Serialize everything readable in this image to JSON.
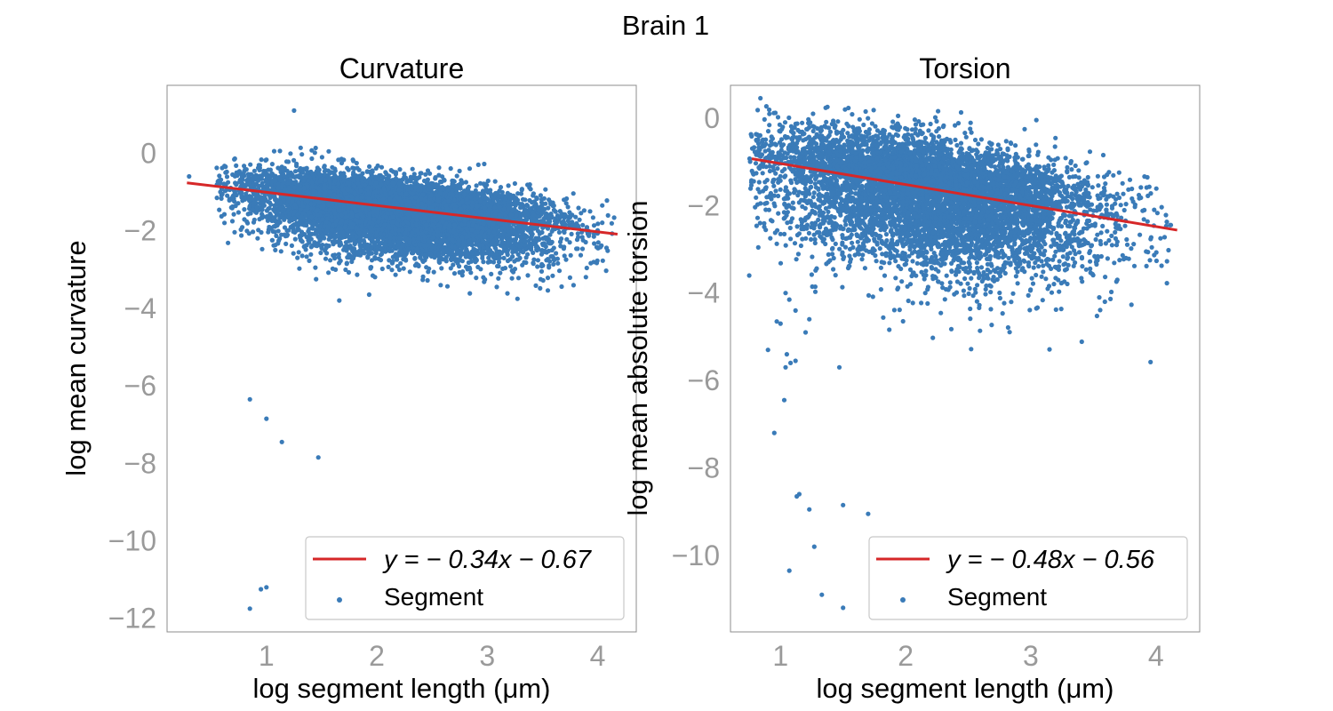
{
  "figure": {
    "suptitle": "Brain 1"
  },
  "colors": {
    "scatter": "#3a7bb8",
    "fit": "#d62728",
    "tick": "#9a9a9a"
  },
  "chart_data": [
    {
      "type": "scatter",
      "title": "Curvature",
      "xlabel": "log segment length (μm)",
      "ylabel": "log mean curvature",
      "xlim": [
        0.1,
        4.35
      ],
      "ylim": [
        -12.35,
        1.75
      ],
      "xticks": [
        1,
        2,
        3,
        4
      ],
      "yticks": [
        0,
        -2,
        -4,
        -6,
        -8,
        -10,
        -12
      ],
      "xtick_labels": [
        "1",
        "2",
        "3",
        "4"
      ],
      "ytick_labels": [
        "0",
        "−2",
        "−4",
        "−6",
        "−8",
        "−10",
        "−12"
      ],
      "legend_position": "lower-right",
      "fit": {
        "slope": -0.34,
        "intercept": -0.67,
        "x_range": [
          0.28,
          4.18
        ],
        "label": "y = − 0.34x − 0.67"
      },
      "series": [
        {
          "name": "Segment",
          "cloud": {
            "x_range": [
              0.55,
              4.15
            ],
            "y_spread_low": 1.05,
            "y_spread_high": 0.65,
            "approx_count": 9000
          },
          "outliers": [
            [
              1.25,
              1.1
            ],
            [
              1.07,
              0.05
            ],
            [
              1.68,
              -0.15
            ],
            [
              2.92,
              -0.3
            ],
            [
              0.3,
              -0.6
            ],
            [
              0.55,
              -0.38
            ],
            [
              0.85,
              -6.35
            ],
            [
              1.0,
              -6.85
            ],
            [
              1.14,
              -7.45
            ],
            [
              1.47,
              -7.85
            ],
            [
              0.95,
              -11.25
            ],
            [
              1.0,
              -11.2
            ],
            [
              0.85,
              -11.75
            ],
            [
              1.66,
              -3.8
            ],
            [
              1.93,
              -3.65
            ],
            [
              1.45,
              -3.25
            ],
            [
              1.6,
              -2.98
            ],
            [
              2.25,
              -2.65
            ]
          ]
        }
      ]
    },
    {
      "type": "scatter",
      "title": "Torsion",
      "xlabel": "log segment length (μm)",
      "ylabel": "log mean absolute torsion",
      "xlim": [
        0.6,
        4.35
      ],
      "ylim": [
        -11.75,
        0.75
      ],
      "xticks": [
        1,
        2,
        3,
        4
      ],
      "yticks": [
        0,
        -2,
        -4,
        -6,
        -8,
        -10
      ],
      "xtick_labels": [
        "1",
        "2",
        "3",
        "4"
      ],
      "ytick_labels": [
        "0",
        "−2",
        "−4",
        "−6",
        "−8",
        "−10"
      ],
      "legend_position": "lower-right",
      "fit": {
        "slope": -0.48,
        "intercept": -0.56,
        "x_range": [
          0.77,
          4.17
        ],
        "label": "y = − 0.48x − 0.56"
      },
      "series": [
        {
          "name": "Segment",
          "cloud": {
            "x_range": [
              0.75,
              4.15
            ],
            "y_spread_low": 1.7,
            "y_spread_high": 1.0,
            "approx_count": 7000
          },
          "outliers": [
            [
              0.75,
              -3.6
            ],
            [
              0.97,
              -4.65
            ],
            [
              1.0,
              -4.7
            ],
            [
              1.04,
              -4.0
            ],
            [
              1.07,
              -4.15
            ],
            [
              1.12,
              -4.4
            ],
            [
              0.9,
              -5.3
            ],
            [
              1.05,
              -5.4
            ],
            [
              1.08,
              -5.6
            ],
            [
              1.12,
              -5.55
            ],
            [
              1.04,
              -5.7
            ],
            [
              1.47,
              -5.7
            ],
            [
              1.03,
              -6.45
            ],
            [
              0.95,
              -7.2
            ],
            [
              1.13,
              -8.65
            ],
            [
              1.15,
              -8.6
            ],
            [
              1.23,
              -8.95
            ],
            [
              1.5,
              -8.85
            ],
            [
              1.7,
              -9.05
            ],
            [
              1.27,
              -9.8
            ],
            [
              1.07,
              -10.35
            ],
            [
              1.33,
              -10.9
            ],
            [
              1.5,
              -11.2
            ],
            [
              1.26,
              0.1
            ],
            [
              1.68,
              0.15
            ],
            [
              2.3,
              -0.2
            ],
            [
              1.23,
              -4.6
            ],
            [
              1.2,
              -4.9
            ],
            [
              1.0,
              -2.65
            ]
          ]
        }
      ]
    }
  ]
}
